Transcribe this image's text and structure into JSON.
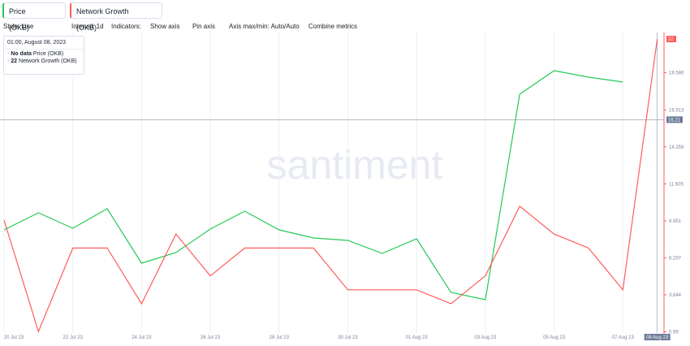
{
  "toolbar": {
    "tabs": [
      "Price (OKB)",
      "Network Growth (OKB)"
    ],
    "style": "Style: Line",
    "interval": "Interval: 1d",
    "indicators": "Indicators:",
    "show_axis": "Show axis",
    "pin_axis": "Pin axis",
    "axis_maxmin": "Axis max/min: Auto/Auto",
    "combine": "Combine metrics"
  },
  "watermark": "santiment",
  "tooltip": {
    "date": "01:00, August 08, 2023",
    "price_label": "No data"
  },
  "chart_data": {
    "type": "line",
    "categories": [
      "20 Jul 23",
      null,
      "22 Jul 23",
      null,
      "24 Jul 23",
      null,
      "26 Jul 23",
      null,
      "28 Jul 23",
      null,
      "30 Jul 23",
      null,
      "01 Aug 23",
      null,
      "03 Aug 23",
      null,
      "05 Aug 23",
      null,
      "07 Aug 23",
      "08 Aug 23"
    ],
    "series": [
      {
        "name": "Price (OKB)",
        "color": "#26c953",
        "axis": "y2",
        "values": [
          42.54,
          42.96,
          42.58,
          43.06,
          41.72,
          41.98,
          42.56,
          43.0,
          42.54,
          42.34,
          42.28,
          41.96,
          42.32,
          41.0,
          40.82,
          45.88,
          46.46,
          46.3,
          46.18,
          null
        ]
      },
      {
        "name": "Network Growth (OKB)",
        "color": "#ff5b5b",
        "values": [
          9,
          1,
          7,
          7,
          3,
          8,
          5,
          7,
          7,
          7,
          4,
          4,
          4,
          3,
          5,
          10,
          8,
          7,
          4,
          22
        ]
      }
    ],
    "ylim": [
      0.9,
      22.47
    ],
    "yticks": [
      0.99,
      3.644,
      6.297,
      8.951,
      11.605,
      14.259,
      16.913,
      19.586
    ],
    "y2lim": [
      40,
      47.4
    ],
    "crosshair_value": 16.21,
    "grid": true
  }
}
